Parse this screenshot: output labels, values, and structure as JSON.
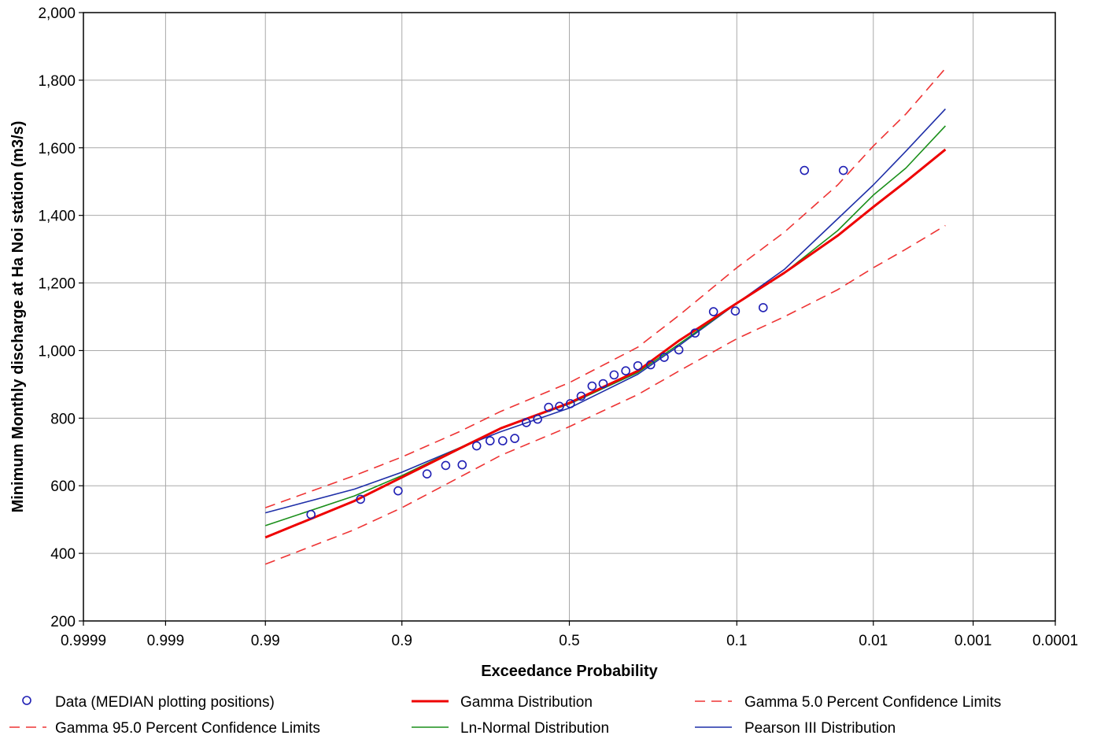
{
  "chart_data": {
    "type": "line",
    "title": "",
    "xlabel": "Exceedance Probability",
    "ylabel": "Minimum Monthly discharge at Ha Noi station (m3/s)",
    "x_scale": "normal-probability",
    "x_ticks": [
      0.9999,
      0.999,
      0.99,
      0.9,
      0.5,
      0.1,
      0.01,
      0.001,
      0.0001
    ],
    "x_tick_labels": [
      "0.9999",
      "0.999",
      "0.99",
      "0.9",
      "0.5",
      "0.1",
      "0.01",
      "0.001",
      "0.0001"
    ],
    "ylim": [
      200,
      2000
    ],
    "y_ticks": [
      200,
      400,
      600,
      800,
      1000,
      1200,
      1400,
      1600,
      1800,
      2000
    ],
    "y_tick_labels": [
      "200",
      "400",
      "600",
      "800",
      "1,000",
      "1,200",
      "1,400",
      "1,600",
      "1,800",
      "2,000"
    ],
    "grid": true,
    "legend_position": "bottom",
    "data_points": {
      "name": "Data (MEDIAN plotting positions)",
      "color": "#1f1fb4",
      "x": [
        0.976,
        0.945,
        0.905,
        0.862,
        0.828,
        0.794,
        0.761,
        0.728,
        0.695,
        0.662,
        0.629,
        0.596,
        0.563,
        0.53,
        0.497,
        0.464,
        0.431,
        0.398,
        0.366,
        0.333,
        0.3,
        0.267,
        0.234,
        0.201,
        0.168,
        0.135,
        0.102,
        0.069,
        0.036,
        0.018
      ],
      "y": [
        515,
        560,
        585,
        635,
        660,
        662,
        718,
        733,
        733,
        740,
        787,
        797,
        832,
        835,
        843,
        865,
        895,
        902,
        928,
        940,
        955,
        958,
        980,
        1002,
        1052,
        1115,
        1117,
        1127,
        1533,
        1533
      ]
    },
    "series": [
      {
        "name": "Gamma Distribution",
        "color": "#ee0000",
        "style": "solid-thick",
        "x": [
          0.99,
          0.95,
          0.9,
          0.8,
          0.7,
          0.5,
          0.3,
          0.2,
          0.1,
          0.05,
          0.02,
          0.01,
          0.005,
          0.002
        ],
        "y": [
          447,
          555,
          625,
          710,
          770,
          845,
          940,
          1030,
          1140,
          1230,
          1340,
          1425,
          1500,
          1595
        ]
      },
      {
        "name": "Gamma 5.0 Percent Confidence Limits",
        "color": "#ee3333",
        "style": "dashed",
        "x": [
          0.99,
          0.95,
          0.9,
          0.8,
          0.7,
          0.5,
          0.3,
          0.2,
          0.1,
          0.05,
          0.02,
          0.01,
          0.005,
          0.002
        ],
        "y": [
          535,
          630,
          685,
          760,
          820,
          905,
          1010,
          1105,
          1245,
          1350,
          1490,
          1605,
          1700,
          1835
        ]
      },
      {
        "name": "Gamma 95.0 Percent Confidence Limits",
        "color": "#ee3333",
        "style": "dashed",
        "x": [
          0.99,
          0.95,
          0.9,
          0.8,
          0.7,
          0.5,
          0.3,
          0.2,
          0.1,
          0.05,
          0.02,
          0.01,
          0.005,
          0.002
        ],
        "y": [
          368,
          470,
          535,
          625,
          690,
          775,
          870,
          940,
          1035,
          1100,
          1180,
          1245,
          1300,
          1370
        ]
      },
      {
        "name": "Ln-Normal Distribution",
        "color": "#1a8f1a",
        "style": "solid",
        "x": [
          0.99,
          0.95,
          0.9,
          0.8,
          0.7,
          0.5,
          0.3,
          0.2,
          0.1,
          0.05,
          0.02,
          0.01,
          0.005,
          0.002
        ],
        "y": [
          482,
          570,
          630,
          712,
          770,
          842,
          935,
          1020,
          1140,
          1230,
          1355,
          1460,
          1540,
          1665
        ]
      },
      {
        "name": "Pearson III Distribution",
        "color": "#1f2fa8",
        "style": "solid",
        "x": [
          0.99,
          0.95,
          0.9,
          0.8,
          0.7,
          0.5,
          0.3,
          0.2,
          0.1,
          0.05,
          0.02,
          0.01,
          0.005,
          0.002
        ],
        "y": [
          520,
          590,
          640,
          712,
          760,
          830,
          930,
          1015,
          1140,
          1240,
          1390,
          1490,
          1590,
          1715
        ]
      }
    ]
  },
  "legend": {
    "items": [
      {
        "label": "Data (MEDIAN plotting positions)",
        "kind": "marker",
        "color": "#1f1fb4"
      },
      {
        "label": "Gamma Distribution",
        "kind": "thick",
        "color": "#ee0000"
      },
      {
        "label": "Gamma 5.0 Percent Confidence Limits",
        "kind": "dashed",
        "color": "#ee3333"
      },
      {
        "label": "Gamma 95.0 Percent Confidence Limits",
        "kind": "dashed",
        "color": "#ee3333"
      },
      {
        "label": "Ln-Normal Distribution",
        "kind": "solid",
        "color": "#1a8f1a"
      },
      {
        "label": "Pearson III Distribution",
        "kind": "solid",
        "color": "#1f2fa8"
      }
    ]
  }
}
